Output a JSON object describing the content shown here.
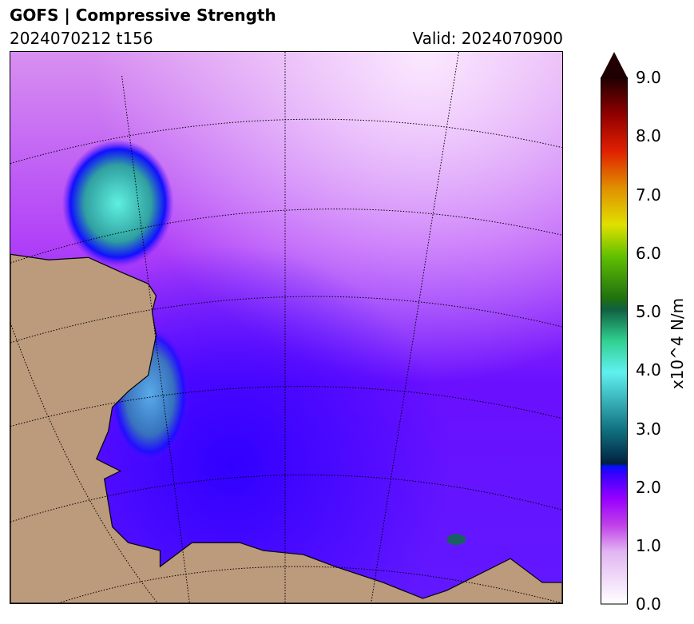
{
  "header": {
    "title": "GOFS  |  Compressive Strength",
    "run": "2024070212 t156",
    "valid": "Valid: 2024070900"
  },
  "colorbar": {
    "label": "x10^4 N/m",
    "ticks": [
      "0.0",
      "1.0",
      "2.0",
      "3.0",
      "4.0",
      "5.0",
      "6.0",
      "7.0",
      "8.0",
      "9.0"
    ],
    "range": [
      0,
      9
    ],
    "extend": "max"
  },
  "colors": {
    "land": "#bc9a7c",
    "coast": "#000000"
  }
}
